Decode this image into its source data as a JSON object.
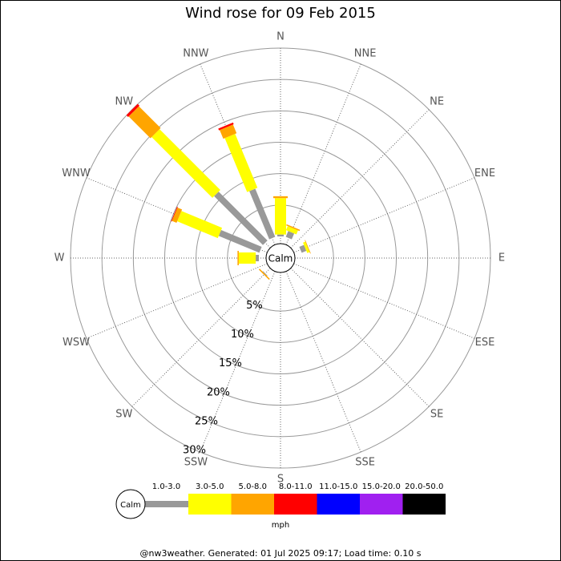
{
  "chart_data": {
    "type": "windrose",
    "title": "Wind rose for 09 Feb 2015",
    "categories": [
      "N",
      "NNE",
      "NE",
      "ENE",
      "E",
      "ESE",
      "SE",
      "SSE",
      "S",
      "SSW",
      "SW",
      "WSW",
      "W",
      "WNW",
      "NW",
      "NNW"
    ],
    "series": [
      {
        "name": "1.0-3.0",
        "color": "#999999",
        "values": [
          0.3,
          1,
          0,
          0.8,
          0,
          0,
          0,
          0,
          0,
          0,
          0.1,
          0,
          0.5,
          7,
          11,
          8.3
        ]
      },
      {
        "name": "3.0-5.0",
        "color": "#ffff00",
        "values": [
          5.8,
          0.7,
          0,
          0.4,
          0,
          0,
          0,
          0,
          0,
          0,
          0,
          0,
          2.7,
          7,
          13.7,
          9.3
        ]
      },
      {
        "name": "5.0-8.0",
        "color": "#ffa500",
        "values": [
          0.3,
          0.2,
          0,
          0.1,
          0,
          0,
          0,
          0,
          0,
          0,
          0.2,
          0,
          0.2,
          0.8,
          4.9,
          1.5
        ]
      },
      {
        "name": "8.0-11.0",
        "color": "#ff0000",
        "values": [
          0,
          0,
          0,
          0,
          0,
          0,
          0,
          0,
          0,
          0,
          0,
          0,
          0,
          0.1,
          0.4,
          0.3
        ]
      },
      {
        "name": "11.0-15.0",
        "color": "#0000ff",
        "values": [
          0,
          0,
          0,
          0,
          0,
          0,
          0,
          0,
          0,
          0,
          0,
          0,
          0,
          0,
          0,
          0
        ]
      },
      {
        "name": "15.0-20.0",
        "color": "#a020f0",
        "values": [
          0,
          0,
          0,
          0,
          0,
          0,
          0,
          0,
          0,
          0,
          0,
          0,
          0,
          0,
          0,
          0
        ]
      },
      {
        "name": "20.0-50.0",
        "color": "#000000",
        "values": [
          0,
          0,
          0,
          0,
          0,
          0,
          0,
          0,
          0,
          0,
          0,
          0,
          0,
          0,
          0,
          0
        ]
      }
    ],
    "rlim": [
      0,
      30
    ],
    "rticks": [
      {
        "value": 5,
        "label": "5%"
      },
      {
        "value": 10,
        "label": "10%"
      },
      {
        "value": 15,
        "label": "15%"
      },
      {
        "value": 20,
        "label": "20%"
      },
      {
        "value": 25,
        "label": "25%"
      },
      {
        "value": 30,
        "label": "30%"
      }
    ],
    "calm_label": "Calm",
    "legend_unit": "mph",
    "footer": "@nw3weather. Generated: 01 Jul 2025 09:17; Load time: 0.10 s"
  }
}
